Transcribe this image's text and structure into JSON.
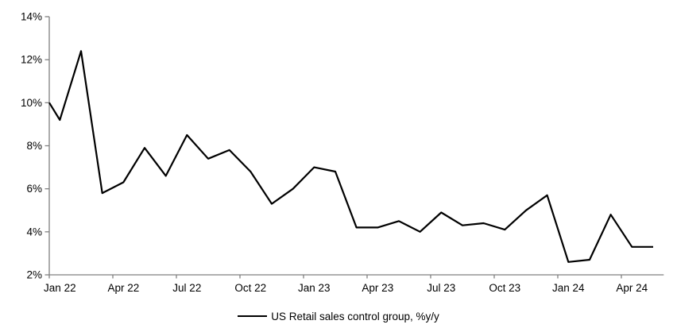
{
  "chart_data": {
    "type": "line",
    "title": "",
    "categories": [
      "Jan 22",
      "Feb 22",
      "Mar 22",
      "Apr 22",
      "May 22",
      "Jun 22",
      "Jul 22",
      "Aug 22",
      "Sep 22",
      "Oct 22",
      "Nov 22",
      "Dec 22",
      "Jan 23",
      "Feb 23",
      "Mar 23",
      "Apr 23",
      "May 23",
      "Jun 23",
      "Jul 23",
      "Aug 23",
      "Sep 23",
      "Oct 23",
      "Nov 23",
      "Dec 23",
      "Jan 24",
      "Feb 24",
      "Mar 24",
      "Apr 24",
      "May 24"
    ],
    "series": [
      {
        "name": "US Retail sales control group, %y/y",
        "values": [
          9.2,
          12.4,
          5.8,
          6.3,
          7.9,
          6.6,
          8.5,
          7.4,
          7.8,
          6.8,
          5.3,
          6.0,
          7.0,
          6.8,
          4.2,
          4.2,
          4.5,
          4.0,
          4.9,
          4.3,
          4.4,
          4.1,
          5.0,
          5.7,
          2.6,
          2.7,
          4.8,
          3.3,
          3.3
        ]
      }
    ],
    "axis_edge_start_value": 10.0,
    "x_tick_labels": [
      "Jan 22",
      "Apr 22",
      "Jul 22",
      "Oct 22",
      "Jan 23",
      "Apr 23",
      "Jul 23",
      "Oct 23",
      "Jan 24",
      "Apr 24"
    ],
    "x_label_interval_months": 3,
    "y_axis": {
      "min": 2,
      "max": 14,
      "step": 2,
      "suffix": "%"
    },
    "grid": false,
    "legend_position": "bottom",
    "colors": {
      "line": "#000000",
      "axis": "#808080",
      "text": "#000000",
      "background": "#ffffff"
    }
  }
}
